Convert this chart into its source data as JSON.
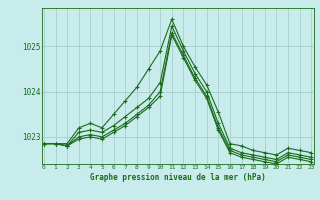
{
  "title": "Graphe pression niveau de la mer (hPa)",
  "background_color": "#c8ecec",
  "grid_color": "#a0c8c8",
  "line_color": "#1a6b1a",
  "x_min": 0,
  "x_max": 23,
  "y_min": 1022.4,
  "y_max": 1025.85,
  "yticks": [
    1023,
    1024,
    1025
  ],
  "xticks": [
    0,
    1,
    2,
    3,
    4,
    5,
    6,
    7,
    8,
    9,
    10,
    11,
    12,
    13,
    14,
    15,
    16,
    17,
    18,
    19,
    20,
    21,
    22,
    23
  ],
  "series": [
    [
      1022.85,
      1022.85,
      1022.85,
      1023.2,
      1023.3,
      1023.2,
      1023.5,
      1023.8,
      1024.1,
      1024.5,
      1024.9,
      1025.6,
      1025.0,
      1024.55,
      1024.15,
      1023.55,
      1022.85,
      1022.8,
      1022.7,
      1022.65,
      1022.6,
      1022.75,
      1022.7,
      1022.65
    ],
    [
      1022.85,
      1022.85,
      1022.8,
      1023.1,
      1023.15,
      1023.1,
      1023.25,
      1023.45,
      1023.65,
      1023.85,
      1024.2,
      1025.45,
      1024.9,
      1024.4,
      1024.0,
      1023.3,
      1022.75,
      1022.65,
      1022.6,
      1022.55,
      1022.5,
      1022.65,
      1022.6,
      1022.55
    ],
    [
      1022.85,
      1022.85,
      1022.8,
      1023.0,
      1023.05,
      1023.0,
      1023.15,
      1023.3,
      1023.5,
      1023.7,
      1024.0,
      1025.3,
      1024.8,
      1024.3,
      1023.9,
      1023.2,
      1022.7,
      1022.6,
      1022.55,
      1022.5,
      1022.45,
      1022.6,
      1022.55,
      1022.5
    ],
    [
      1022.85,
      1022.85,
      1022.8,
      1022.95,
      1023.0,
      1022.95,
      1023.1,
      1023.25,
      1023.45,
      1023.65,
      1023.9,
      1025.25,
      1024.75,
      1024.25,
      1023.85,
      1023.15,
      1022.65,
      1022.55,
      1022.5,
      1022.45,
      1022.4,
      1022.55,
      1022.5,
      1022.45
    ]
  ],
  "marker": "+",
  "marker_size": 3.5,
  "line_width": 0.8
}
